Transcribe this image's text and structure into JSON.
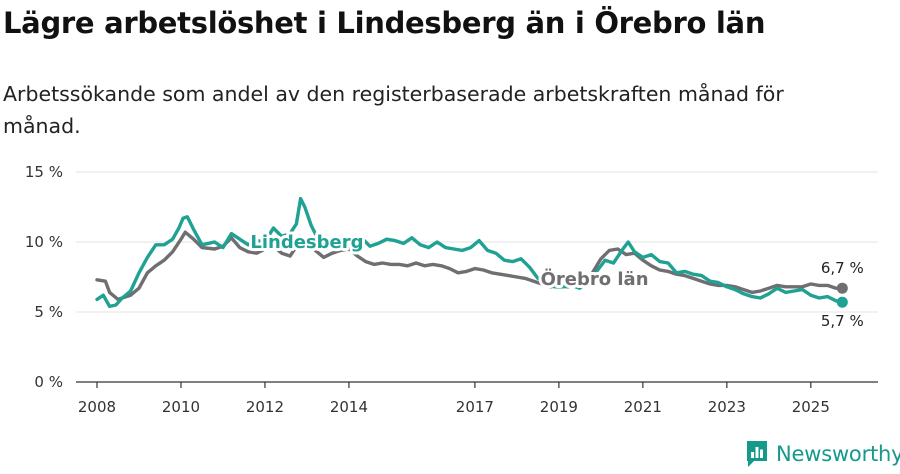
{
  "header": {
    "title": "Lägre arbetslöshet i Lindesberg än i Örebro län",
    "subtitle": "Arbetssökande som andel av den registerbaserade arbetskraften månad för månad."
  },
  "brand": {
    "name": "Newsworthy"
  },
  "colors": {
    "lindesberg": "#1fa293",
    "orebro": "#6f6e71",
    "grid": "#e3e3e3",
    "axis": "#333333"
  },
  "chart_data": {
    "type": "line",
    "title": "Lägre arbetslöshet i Lindesberg än i Örebro län",
    "subtitle": "Arbetssökande som andel av den registerbaserade arbetskraften månad för månad.",
    "xlabel": "",
    "ylabel": "",
    "xlim": [
      2007.5,
      2026.6
    ],
    "ylim": [
      0,
      15
    ],
    "y_ticks": [
      0,
      5,
      10,
      15
    ],
    "y_tick_labels": [
      "0 %",
      "5 %",
      "10 %",
      "15 %"
    ],
    "x_ticks": [
      2008,
      2010,
      2012,
      2014,
      2017,
      2019,
      2021,
      2023,
      2025
    ],
    "x_tick_labels": [
      "2008",
      "2010",
      "2012",
      "2014",
      "2017",
      "2019",
      "2021",
      "2023",
      "2025"
    ],
    "grid": true,
    "series": [
      {
        "name": "Örebro län",
        "label": "Örebro län",
        "end_label": "6,7 %",
        "x": [
          2008.0,
          2008.2,
          2008.3,
          2008.5,
          2008.8,
          2009.0,
          2009.2,
          2009.4,
          2009.6,
          2009.8,
          2010.0,
          2010.1,
          2010.3,
          2010.5,
          2010.8,
          2011.0,
          2011.2,
          2011.4,
          2011.6,
          2011.8,
          2012.0,
          2012.2,
          2012.4,
          2012.6,
          2012.8,
          2013.0,
          2013.2,
          2013.4,
          2013.6,
          2013.8,
          2014.0,
          2014.2,
          2014.4,
          2014.6,
          2014.8,
          2015.0,
          2015.2,
          2015.4,
          2015.6,
          2015.8,
          2016.0,
          2016.2,
          2016.4,
          2016.6,
          2016.8,
          2017.0,
          2017.2,
          2017.4,
          2017.6,
          2017.8,
          2018.0,
          2018.2,
          2018.4,
          2018.6,
          2018.8,
          2019.0,
          2019.2,
          2019.4,
          2019.6,
          2019.8,
          2020.0,
          2020.2,
          2020.4,
          2020.6,
          2020.8,
          2021.0,
          2021.2,
          2021.4,
          2021.6,
          2021.8,
          2022.0,
          2022.2,
          2022.4,
          2022.6,
          2022.8,
          2023.0,
          2023.2,
          2023.4,
          2023.6,
          2023.8,
          2024.0,
          2024.2,
          2024.4,
          2024.6,
          2024.8,
          2025.0,
          2025.2,
          2025.4,
          2025.6,
          2025.75
        ],
        "values": [
          7.3,
          7.2,
          6.4,
          5.9,
          6.2,
          6.7,
          7.8,
          8.3,
          8.7,
          9.3,
          10.2,
          10.7,
          10.2,
          9.6,
          9.5,
          9.7,
          10.3,
          9.6,
          9.3,
          9.2,
          9.5,
          9.7,
          9.2,
          9.0,
          9.9,
          10.2,
          9.4,
          8.9,
          9.2,
          9.4,
          9.5,
          9.0,
          8.6,
          8.4,
          8.5,
          8.4,
          8.4,
          8.3,
          8.5,
          8.3,
          8.4,
          8.3,
          8.1,
          7.8,
          7.9,
          8.1,
          8.0,
          7.8,
          7.7,
          7.6,
          7.5,
          7.4,
          7.2,
          7.0,
          6.8,
          6.9,
          6.8,
          6.9,
          7.1,
          7.8,
          8.8,
          9.4,
          9.5,
          9.1,
          9.2,
          8.7,
          8.3,
          8.0,
          7.9,
          7.7,
          7.6,
          7.4,
          7.2,
          7.0,
          6.9,
          6.9,
          6.8,
          6.6,
          6.4,
          6.5,
          6.7,
          6.9,
          6.8,
          6.8,
          6.8,
          7.0,
          6.9,
          6.9,
          6.7,
          6.7
        ]
      },
      {
        "name": "Lindesberg",
        "label": "Lindesberg",
        "end_label": "5,7 %",
        "x": [
          2008.0,
          2008.15,
          2008.3,
          2008.45,
          2008.6,
          2008.8,
          2009.0,
          2009.2,
          2009.4,
          2009.6,
          2009.8,
          2009.95,
          2010.05,
          2010.15,
          2010.3,
          2010.5,
          2010.8,
          2011.0,
          2011.2,
          2011.4,
          2011.6,
          2011.8,
          2012.0,
          2012.2,
          2012.4,
          2012.6,
          2012.75,
          2012.85,
          2012.95,
          2013.1,
          2013.3,
          2013.5,
          2013.7,
          2013.9,
          2014.1,
          2014.3,
          2014.5,
          2014.7,
          2014.9,
          2015.1,
          2015.3,
          2015.5,
          2015.7,
          2015.9,
          2016.1,
          2016.3,
          2016.5,
          2016.7,
          2016.9,
          2017.1,
          2017.3,
          2017.5,
          2017.7,
          2017.9,
          2018.1,
          2018.3,
          2018.5,
          2018.7,
          2018.9,
          2019.1,
          2019.3,
          2019.5,
          2019.7,
          2019.9,
          2020.1,
          2020.3,
          2020.5,
          2020.65,
          2020.8,
          2021.0,
          2021.2,
          2021.4,
          2021.6,
          2021.8,
          2022.0,
          2022.2,
          2022.4,
          2022.6,
          2022.8,
          2023.0,
          2023.2,
          2023.4,
          2023.6,
          2023.8,
          2024.0,
          2024.2,
          2024.4,
          2024.6,
          2024.8,
          2025.0,
          2025.2,
          2025.4,
          2025.6,
          2025.75
        ],
        "values": [
          5.9,
          6.2,
          5.4,
          5.5,
          6.0,
          6.5,
          7.8,
          8.9,
          9.8,
          9.8,
          10.2,
          11.0,
          11.7,
          11.8,
          10.9,
          9.8,
          10.0,
          9.6,
          10.6,
          10.2,
          9.8,
          10.1,
          10.0,
          11.0,
          10.4,
          10.6,
          11.3,
          13.1,
          12.5,
          11.2,
          10.0,
          9.7,
          9.8,
          9.9,
          10.0,
          10.3,
          9.7,
          9.9,
          10.2,
          10.1,
          9.9,
          10.3,
          9.8,
          9.6,
          10.0,
          9.6,
          9.5,
          9.4,
          9.6,
          10.1,
          9.4,
          9.2,
          8.7,
          8.6,
          8.8,
          8.2,
          7.4,
          7.1,
          6.8,
          6.8,
          6.9,
          6.7,
          7.3,
          7.9,
          8.7,
          8.5,
          9.4,
          10.0,
          9.3,
          8.9,
          9.1,
          8.6,
          8.5,
          7.8,
          7.9,
          7.7,
          7.6,
          7.2,
          7.1,
          6.8,
          6.6,
          6.3,
          6.1,
          6.0,
          6.3,
          6.7,
          6.4,
          6.5,
          6.6,
          6.2,
          6.0,
          6.1,
          5.8,
          5.7
        ]
      }
    ]
  }
}
